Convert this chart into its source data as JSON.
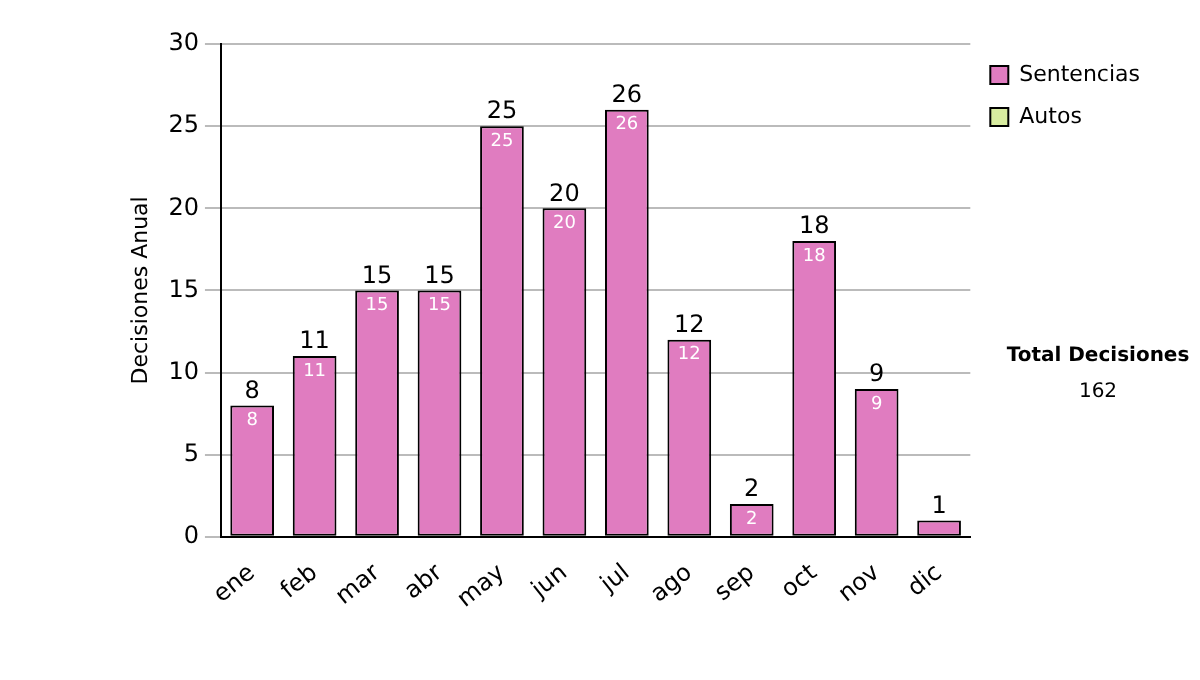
{
  "chart_data": {
    "type": "bar",
    "stacked": true,
    "ylabel": "Decisiones Anual",
    "categories": [
      "ene",
      "feb",
      "mar",
      "abr",
      "may",
      "jun",
      "jul",
      "ago",
      "sep",
      "oct",
      "nov",
      "dic"
    ],
    "series": [
      {
        "name": "Sentencias",
        "color": "#e07cc0",
        "values": [
          8,
          11,
          15,
          15,
          25,
          20,
          26,
          12,
          2,
          18,
          9,
          1
        ],
        "value_labels": [
          "8",
          "11",
          "15",
          "15",
          "25",
          "20",
          "26",
          "12",
          "2",
          "18",
          "9",
          null
        ]
      },
      {
        "name": "Autos",
        "color": "#d8eca0",
        "values": [
          0,
          0,
          0,
          0,
          0,
          0,
          0,
          0,
          0,
          0,
          0,
          0
        ]
      }
    ],
    "totals": [
      "8",
      "11",
      "15",
      "15",
      "25",
      "20",
      "26",
      "12",
      "2",
      "18",
      "9",
      "1"
    ],
    "ylim": [
      0,
      30
    ],
    "yticks": [
      0,
      5,
      10,
      15,
      20,
      25,
      30
    ],
    "grid": "y",
    "legend": "right",
    "annotations": [
      "Total Decisiones",
      "162"
    ]
  }
}
